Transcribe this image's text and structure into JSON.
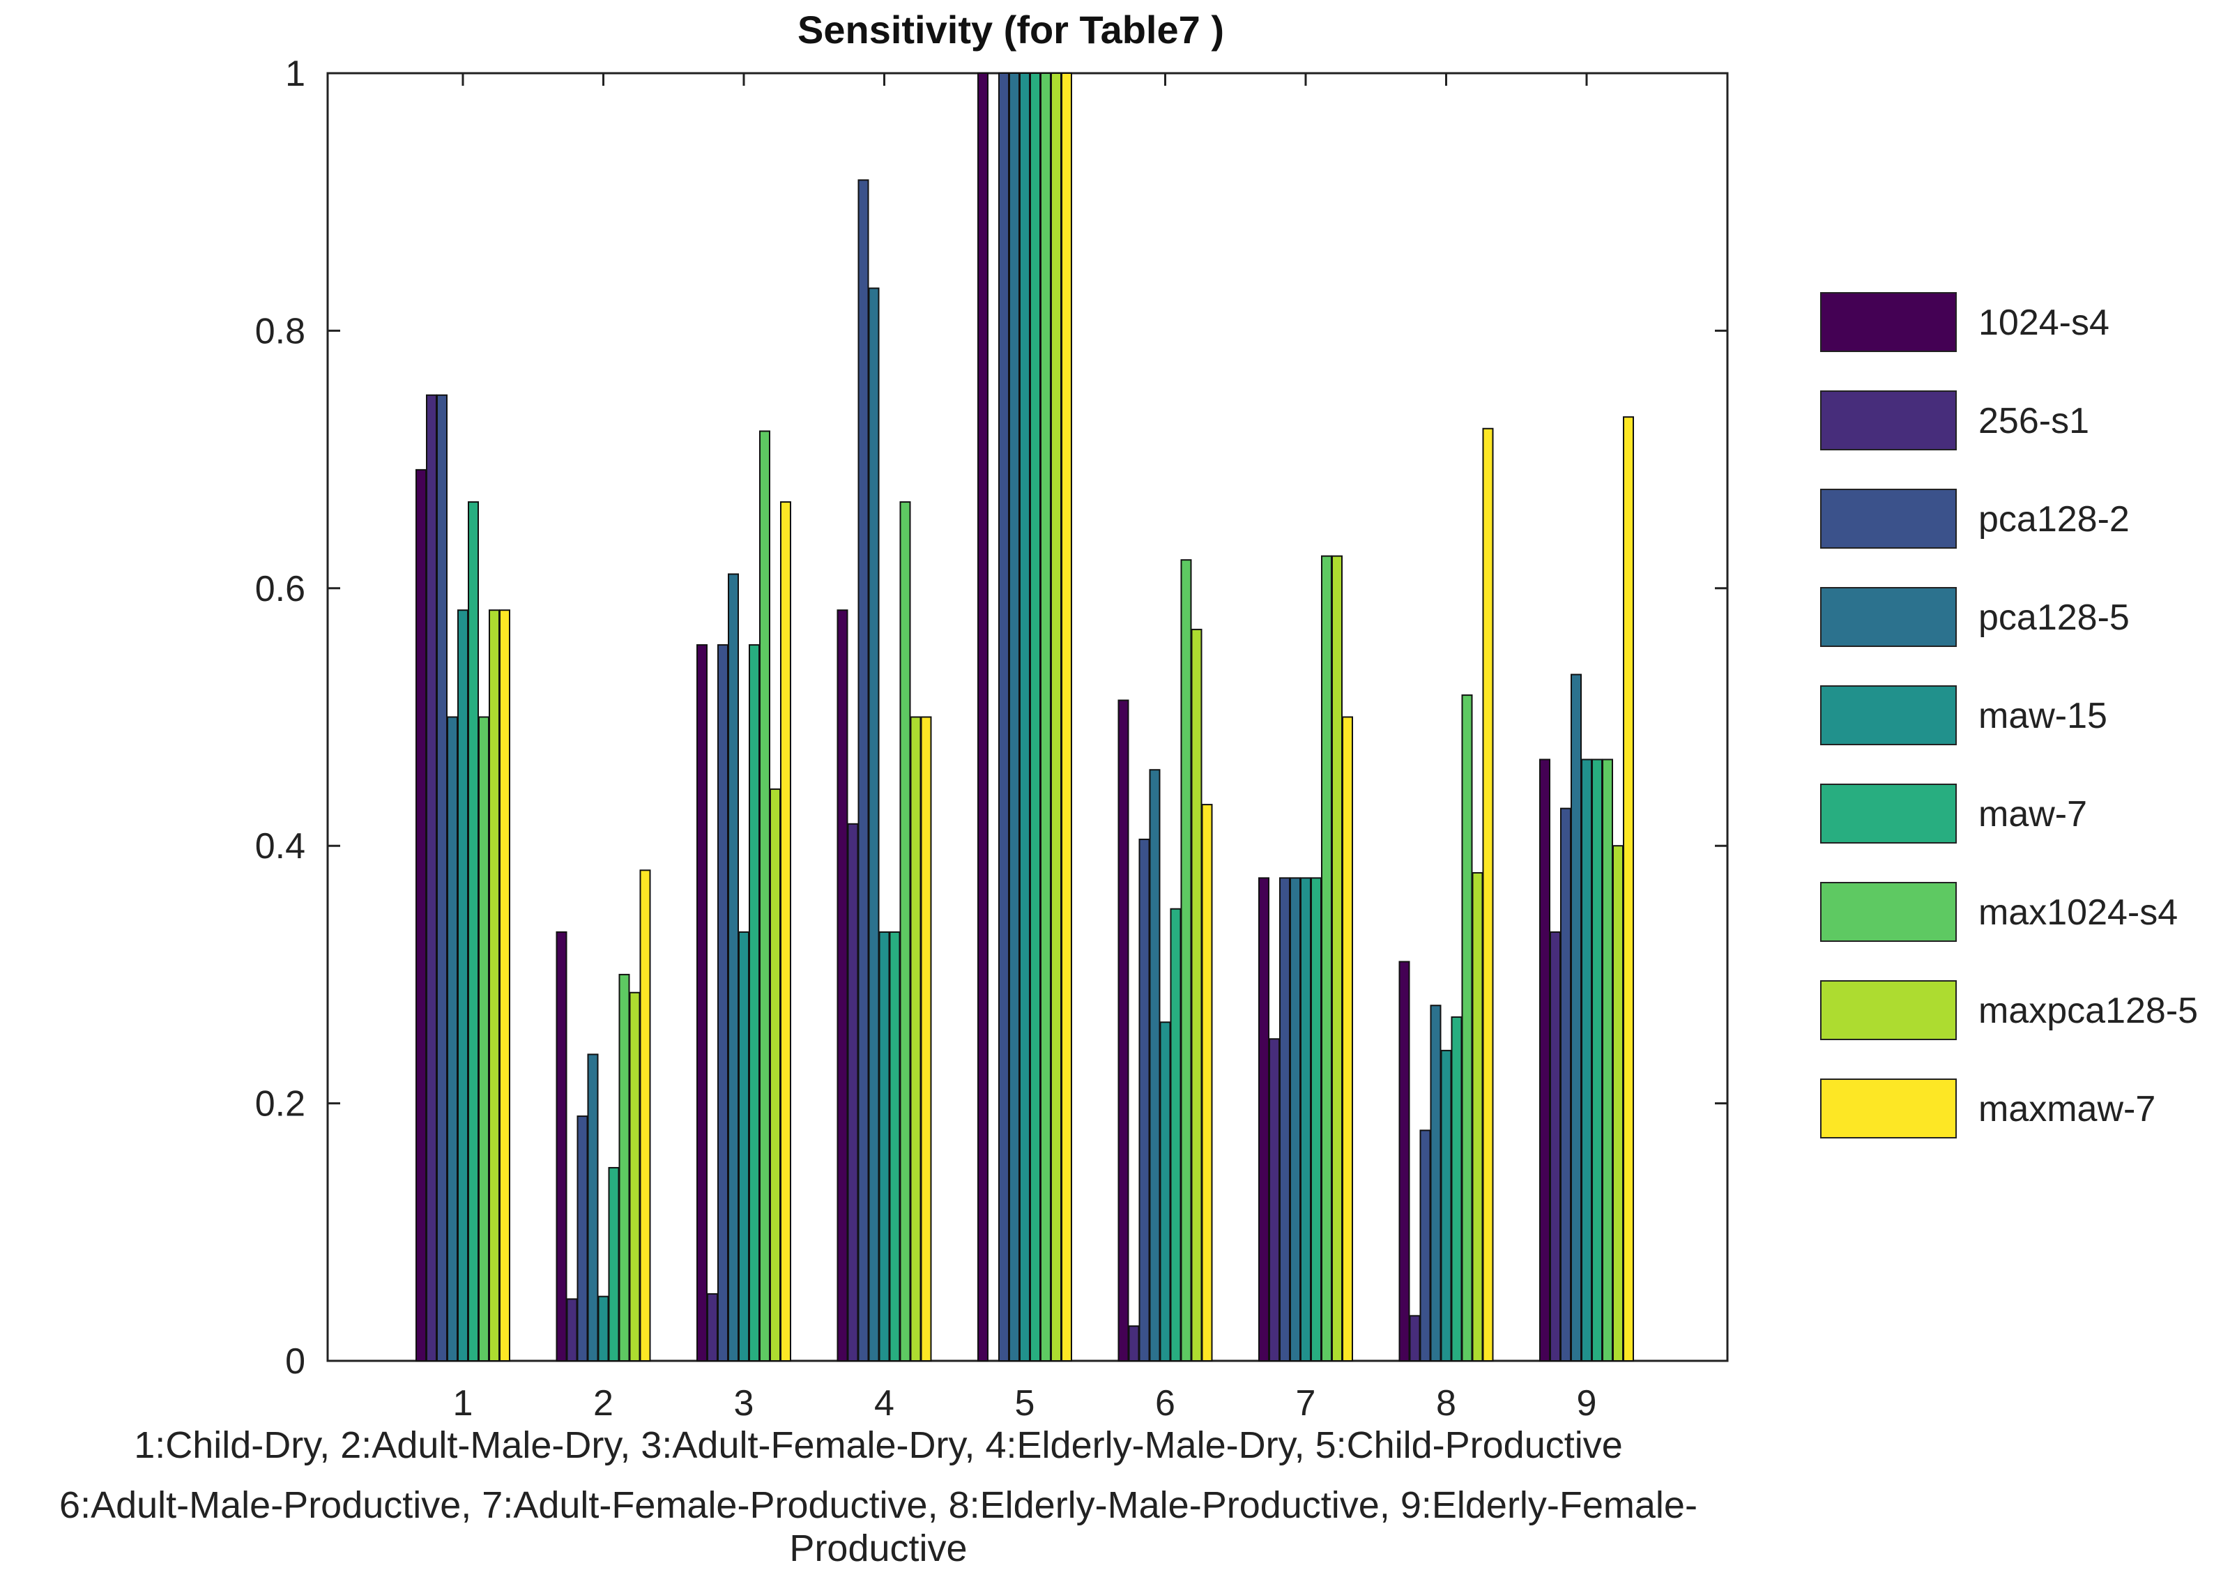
{
  "chart_data": {
    "type": "bar",
    "title": "Sensitivity (for Table7 )",
    "xlabel_lines": [
      "1:Child-Dry, 2:Adult-Male-Dry, 3:Adult-Female-Dry, 4:Elderly-Male-Dry, 5:Child-Productive",
      "6:Adult-Male-Productive, 7:Adult-Female-Productive, 8:Elderly-Male-Productive, 9:Elderly-Female-Productive"
    ],
    "ylabel": "",
    "ylim": [
      0,
      1
    ],
    "yticks": [
      0,
      0.2,
      0.4,
      0.6,
      0.8,
      1
    ],
    "ytick_labels": [
      "0",
      "0.2",
      "0.4",
      "0.6",
      "0.8",
      "1"
    ],
    "categories": [
      "1",
      "2",
      "3",
      "4",
      "5",
      "6",
      "7",
      "8",
      "9"
    ],
    "legend_position": "right",
    "series": [
      {
        "name": "1024-s4",
        "color": "#440154",
        "values": [
          0.692,
          0.333,
          0.556,
          0.583,
          1.0,
          0.513,
          0.375,
          0.31,
          0.467
        ]
      },
      {
        "name": "256-s1",
        "color": "#472d7b",
        "values": [
          0.75,
          0.048,
          0.052,
          0.417,
          0.0,
          0.027,
          0.25,
          0.035,
          0.333
        ]
      },
      {
        "name": "pca128-2",
        "color": "#3b528b",
        "values": [
          0.75,
          0.19,
          0.556,
          0.917,
          1.0,
          0.405,
          0.375,
          0.179,
          0.429
        ]
      },
      {
        "name": "pca128-5",
        "color": "#2c728e",
        "values": [
          0.5,
          0.238,
          0.611,
          0.833,
          1.0,
          0.459,
          0.375,
          0.276,
          0.533
        ]
      },
      {
        "name": "maw-15",
        "color": "#21918c",
        "values": [
          0.583,
          0.05,
          0.333,
          0.333,
          1.0,
          0.263,
          0.375,
          0.241,
          0.467
        ]
      },
      {
        "name": "maw-7",
        "color": "#28ae80",
        "values": [
          0.667,
          0.15,
          0.556,
          0.333,
          1.0,
          0.351,
          0.375,
          0.267,
          0.467
        ]
      },
      {
        "name": "max1024-s4",
        "color": "#5ec962",
        "values": [
          0.5,
          0.3,
          0.722,
          0.667,
          1.0,
          0.622,
          0.625,
          0.517,
          0.467
        ]
      },
      {
        "name": "maxpca128-5",
        "color": "#addc30",
        "values": [
          0.583,
          0.286,
          0.444,
          0.5,
          1.0,
          0.568,
          0.625,
          0.379,
          0.4
        ]
      },
      {
        "name": "maxmaw-7",
        "color": "#fde725",
        "values": [
          0.583,
          0.381,
          0.667,
          0.5,
          1.0,
          0.432,
          0.5,
          0.724,
          0.733
        ]
      }
    ]
  }
}
